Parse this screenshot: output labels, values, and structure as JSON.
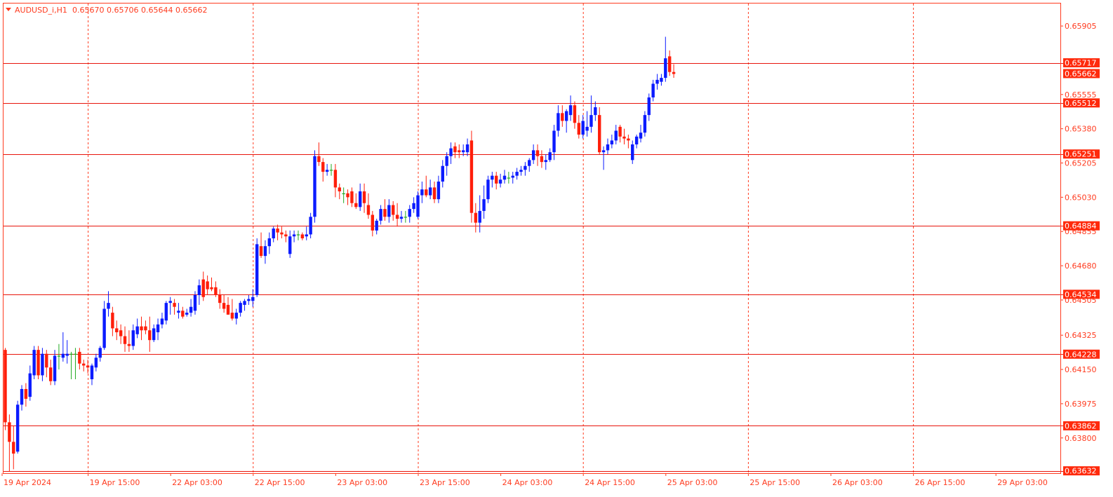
{
  "header": {
    "symbol_label": "AUDUSD_i,H1",
    "ohlc_text": "0.65670 0.65706 0.65644 0.65662"
  },
  "colors": {
    "frame": "#ff3b1f",
    "grid": "#ff3b1f",
    "level_line": "#e8150c",
    "tag_bg": "#ff2a0c",
    "tag_text": "#ffffff",
    "axis_text": "#ff3b1f",
    "bull": "#0b1bff",
    "bear": "#ff1e0a",
    "doji": "#22aa22"
  },
  "chart_data": {
    "type": "candlestick",
    "timeframe": "H1",
    "symbol": "AUDUSD_i",
    "ylim": [
      0.6362,
      0.6602
    ],
    "y_ticks": [
      "0.65905",
      "0.65555",
      "0.65380",
      "0.65205",
      "0.65030",
      "0.64855",
      "0.64680",
      "0.64505",
      "0.64325",
      "0.64150",
      "0.63975",
      "0.63800"
    ],
    "x_ticks": [
      "19 Apr 2024",
      "19 Apr 15:00",
      "22 Apr 03:00",
      "22 Apr 15:00",
      "23 Apr 03:00",
      "23 Apr 15:00",
      "24 Apr 03:00",
      "24 Apr 15:00",
      "25 Apr 03:00",
      "25 Apr 15:00",
      "26 Apr 03:00",
      "26 Apr 15:00",
      "29 Apr 03:00"
    ],
    "grid": "vertical-dashed",
    "current_price": "0.65662",
    "levels": [
      "0.65717",
      "0.65512",
      "0.65251",
      "0.64884",
      "0.64534",
      "0.64228",
      "0.63862",
      "0.63632"
    ],
    "candles": [
      [
        0.6425,
        0.6426,
        0.6384,
        0.6388
      ],
      [
        0.6388,
        0.6392,
        0.6363,
        0.6378
      ],
      [
        0.6378,
        0.6386,
        0.6364,
        0.6372
      ],
      [
        0.6373,
        0.6399,
        0.6372,
        0.6397
      ],
      [
        0.6397,
        0.6407,
        0.6394,
        0.6405
      ],
      [
        0.6405,
        0.6408,
        0.6396,
        0.64
      ],
      [
        0.6401,
        0.6417,
        0.6399,
        0.6413
      ],
      [
        0.6412,
        0.6427,
        0.641,
        0.6425
      ],
      [
        0.6425,
        0.6427,
        0.641,
        0.6412
      ],
      [
        0.6412,
        0.6426,
        0.6409,
        0.6423
      ],
      [
        0.6423,
        0.6425,
        0.6411,
        0.6416
      ],
      [
        0.6416,
        0.642,
        0.6407,
        0.6409
      ],
      [
        0.6409,
        0.6425,
        0.6407,
        0.6422
      ],
      [
        0.6422,
        0.6428,
        0.6415,
        0.6422
      ],
      [
        0.6421,
        0.6434,
        0.6419,
        0.6423
      ],
      [
        0.6422,
        0.643,
        0.6418,
        0.6423
      ],
      [
        0.6423,
        0.6424,
        0.641,
        0.6423
      ],
      [
        0.6423,
        0.6426,
        0.641,
        0.6423
      ],
      [
        0.6424,
        0.6426,
        0.6415,
        0.6418
      ],
      [
        0.6418,
        0.642,
        0.6414,
        0.6417
      ],
      [
        0.6417,
        0.642,
        0.6413,
        0.6416
      ],
      [
        0.641,
        0.6418,
        0.6407,
        0.6417
      ],
      [
        0.6416,
        0.6423,
        0.6414,
        0.6421
      ],
      [
        0.6421,
        0.6427,
        0.6419,
        0.6426
      ],
      [
        0.6426,
        0.645,
        0.6425,
        0.6446
      ],
      [
        0.6446,
        0.6455,
        0.6442,
        0.6449
      ],
      [
        0.6444,
        0.6447,
        0.6432,
        0.6436
      ],
      [
        0.6436,
        0.644,
        0.643,
        0.6434
      ],
      [
        0.6435,
        0.6438,
        0.6428,
        0.6432
      ],
      [
        0.6432,
        0.6437,
        0.6424,
        0.6428
      ],
      [
        0.6428,
        0.6435,
        0.6424,
        0.6427
      ],
      [
        0.6427,
        0.6438,
        0.6425,
        0.6435
      ],
      [
        0.6433,
        0.6441,
        0.6431,
        0.6437
      ],
      [
        0.6437,
        0.6442,
        0.643,
        0.6435
      ],
      [
        0.6437,
        0.644,
        0.6433,
        0.6435
      ],
      [
        0.6435,
        0.6442,
        0.6424,
        0.643
      ],
      [
        0.643,
        0.6438,
        0.6429,
        0.6436
      ],
      [
        0.6434,
        0.6441,
        0.643,
        0.6438
      ],
      [
        0.6438,
        0.6444,
        0.6436,
        0.6441
      ],
      [
        0.644,
        0.645,
        0.6438,
        0.6449
      ],
      [
        0.6449,
        0.6452,
        0.6443,
        0.645
      ],
      [
        0.6449,
        0.6451,
        0.6443,
        0.6447
      ],
      [
        0.6444,
        0.6449,
        0.6441,
        0.6445
      ],
      [
        0.6445,
        0.6447,
        0.6441,
        0.6442
      ],
      [
        0.6443,
        0.6446,
        0.6442,
        0.6444
      ],
      [
        0.6444,
        0.6451,
        0.6442,
        0.6447
      ],
      [
        0.6445,
        0.6455,
        0.6443,
        0.6453
      ],
      [
        0.6453,
        0.6461,
        0.6448,
        0.6458
      ],
      [
        0.6461,
        0.6465,
        0.645,
        0.6452
      ],
      [
        0.646,
        0.6463,
        0.6453,
        0.6456
      ],
      [
        0.6457,
        0.6462,
        0.6455,
        0.6456
      ],
      [
        0.6457,
        0.646,
        0.6452,
        0.6453
      ],
      [
        0.6453,
        0.6456,
        0.6446,
        0.6449
      ],
      [
        0.6449,
        0.6453,
        0.6444,
        0.6446
      ],
      [
        0.6448,
        0.6452,
        0.6443,
        0.6443
      ],
      [
        0.6444,
        0.6451,
        0.644,
        0.6441
      ],
      [
        0.6441,
        0.6446,
        0.6438,
        0.6444
      ],
      [
        0.6444,
        0.645,
        0.6442,
        0.6449
      ],
      [
        0.6448,
        0.6451,
        0.6445,
        0.645
      ],
      [
        0.645,
        0.6453,
        0.6448,
        0.6451
      ],
      [
        0.645,
        0.6456,
        0.6447,
        0.6452
      ],
      [
        0.6453,
        0.6482,
        0.6452,
        0.6479
      ],
      [
        0.6478,
        0.6485,
        0.6472,
        0.6473
      ],
      [
        0.6473,
        0.6481,
        0.6469,
        0.6478
      ],
      [
        0.6478,
        0.6485,
        0.6474,
        0.6482
      ],
      [
        0.6482,
        0.6488,
        0.648,
        0.6487
      ],
      [
        0.6487,
        0.6489,
        0.6481,
        0.6485
      ],
      [
        0.6485,
        0.6488,
        0.6482,
        0.6484
      ],
      [
        0.6484,
        0.6486,
        0.648,
        0.6483
      ],
      [
        0.6474,
        0.6486,
        0.6472,
        0.6483
      ],
      [
        0.6483,
        0.6486,
        0.648,
        0.6484
      ],
      [
        0.6484,
        0.6486,
        0.6481,
        0.6484
      ],
      [
        0.6484,
        0.6485,
        0.6481,
        0.6482
      ],
      [
        0.6483,
        0.6488,
        0.6481,
        0.6484
      ],
      [
        0.6484,
        0.6495,
        0.6482,
        0.6493
      ],
      [
        0.6493,
        0.6527,
        0.649,
        0.6524
      ],
      [
        0.6524,
        0.6531,
        0.6519,
        0.6521
      ],
      [
        0.6521,
        0.6523,
        0.6511,
        0.6516
      ],
      [
        0.6516,
        0.652,
        0.6514,
        0.6517
      ],
      [
        0.6517,
        0.652,
        0.6514,
        0.6517
      ],
      [
        0.6517,
        0.652,
        0.6503,
        0.6508
      ],
      [
        0.6508,
        0.651,
        0.6502,
        0.6506
      ],
      [
        0.6505,
        0.6508,
        0.65,
        0.6505
      ],
      [
        0.6505,
        0.6507,
        0.6499,
        0.6503
      ],
      [
        0.6506,
        0.6508,
        0.6498,
        0.65
      ],
      [
        0.65,
        0.6505,
        0.6497,
        0.6498
      ],
      [
        0.6498,
        0.651,
        0.6496,
        0.6506
      ],
      [
        0.6506,
        0.651,
        0.6495,
        0.65
      ],
      [
        0.6499,
        0.6505,
        0.6492,
        0.6494
      ],
      [
        0.6494,
        0.6496,
        0.6483,
        0.6486
      ],
      [
        0.6486,
        0.6492,
        0.6484,
        0.6491
      ],
      [
        0.6491,
        0.6499,
        0.6489,
        0.6497
      ],
      [
        0.6497,
        0.6502,
        0.6491,
        0.6493
      ],
      [
        0.6493,
        0.6502,
        0.649,
        0.6499
      ],
      [
        0.6499,
        0.6501,
        0.6491,
        0.6494
      ],
      [
        0.6494,
        0.65,
        0.6488,
        0.6492
      ],
      [
        0.6492,
        0.6496,
        0.649,
        0.6493
      ],
      [
        0.6493,
        0.6496,
        0.649,
        0.6493
      ],
      [
        0.6493,
        0.6499,
        0.649,
        0.6497
      ],
      [
        0.6497,
        0.6503,
        0.6495,
        0.65
      ],
      [
        0.6493,
        0.6506,
        0.6492,
        0.6504
      ],
      [
        0.6504,
        0.6511,
        0.65,
        0.6507
      ],
      [
        0.6507,
        0.6514,
        0.6503,
        0.6504
      ],
      [
        0.6504,
        0.6512,
        0.6502,
        0.6508
      ],
      [
        0.6508,
        0.6511,
        0.65,
        0.6502
      ],
      [
        0.6502,
        0.6514,
        0.65,
        0.6511
      ],
      [
        0.6511,
        0.6522,
        0.6508,
        0.6519
      ],
      [
        0.6519,
        0.6526,
        0.6514,
        0.6524
      ],
      [
        0.6524,
        0.6531,
        0.652,
        0.6528
      ],
      [
        0.6529,
        0.6531,
        0.6523,
        0.6526
      ],
      [
        0.6527,
        0.653,
        0.6523,
        0.6526
      ],
      [
        0.6526,
        0.653,
        0.6524,
        0.6527
      ],
      [
        0.6526,
        0.6533,
        0.6524,
        0.653
      ],
      [
        0.6532,
        0.6537,
        0.649,
        0.6495
      ],
      [
        0.6495,
        0.65,
        0.6485,
        0.649
      ],
      [
        0.649,
        0.6504,
        0.6485,
        0.6496
      ],
      [
        0.6496,
        0.6509,
        0.6492,
        0.6502
      ],
      [
        0.6502,
        0.6514,
        0.65,
        0.6512
      ],
      [
        0.6512,
        0.6516,
        0.6508,
        0.6514
      ],
      [
        0.6514,
        0.6516,
        0.6507,
        0.651
      ],
      [
        0.651,
        0.6515,
        0.6508,
        0.6512
      ],
      [
        0.6512,
        0.6517,
        0.651,
        0.6514
      ],
      [
        0.6513,
        0.6516,
        0.651,
        0.6513
      ],
      [
        0.6513,
        0.6516,
        0.651,
        0.6514
      ],
      [
        0.6514,
        0.6518,
        0.6512,
        0.6516
      ],
      [
        0.6516,
        0.6519,
        0.6514,
        0.6517
      ],
      [
        0.6517,
        0.6521,
        0.6514,
        0.6519
      ],
      [
        0.6519,
        0.6523,
        0.6516,
        0.6522
      ],
      [
        0.6522,
        0.653,
        0.652,
        0.6527
      ],
      [
        0.6527,
        0.653,
        0.6519,
        0.6524
      ],
      [
        0.6524,
        0.6527,
        0.6518,
        0.6521
      ],
      [
        0.6521,
        0.6525,
        0.6517,
        0.6522
      ],
      [
        0.6522,
        0.6528,
        0.6521,
        0.6526
      ],
      [
        0.6526,
        0.654,
        0.6522,
        0.6537
      ],
      [
        0.6537,
        0.655,
        0.6534,
        0.6546
      ],
      [
        0.6546,
        0.655,
        0.6539,
        0.6542
      ],
      [
        0.6542,
        0.6548,
        0.6536,
        0.6547
      ],
      [
        0.6545,
        0.6555,
        0.6542,
        0.655
      ],
      [
        0.655,
        0.6552,
        0.6538,
        0.6541
      ],
      [
        0.6541,
        0.6545,
        0.6533,
        0.6535
      ],
      [
        0.6535,
        0.6545,
        0.6533,
        0.6542
      ],
      [
        0.6537,
        0.6547,
        0.6534,
        0.6539
      ],
      [
        0.6539,
        0.6555,
        0.6536,
        0.6545
      ],
      [
        0.6545,
        0.6552,
        0.6542,
        0.6549
      ],
      [
        0.6545,
        0.6549,
        0.6525,
        0.6526
      ],
      [
        0.6526,
        0.6529,
        0.6517,
        0.6527
      ],
      [
        0.6527,
        0.6533,
        0.6525,
        0.653
      ],
      [
        0.653,
        0.6535,
        0.6528,
        0.6532
      ],
      [
        0.6532,
        0.654,
        0.653,
        0.6537
      ],
      [
        0.6539,
        0.654,
        0.6531,
        0.6534
      ],
      [
        0.6534,
        0.6538,
        0.653,
        0.6533
      ],
      [
        0.6533,
        0.6535,
        0.6528,
        0.6532
      ],
      [
        0.6522,
        0.6532,
        0.652,
        0.653
      ],
      [
        0.653,
        0.6535,
        0.6528,
        0.6534
      ],
      [
        0.6533,
        0.654,
        0.6531,
        0.6536
      ],
      [
        0.6536,
        0.6547,
        0.6534,
        0.6545
      ],
      [
        0.6545,
        0.6556,
        0.6542,
        0.6554
      ],
      [
        0.6554,
        0.6563,
        0.6552,
        0.6561
      ],
      [
        0.6561,
        0.6566,
        0.6558,
        0.6563
      ],
      [
        0.6562,
        0.6566,
        0.656,
        0.6564
      ],
      [
        0.6564,
        0.6585,
        0.6562,
        0.6574
      ],
      [
        0.6575,
        0.6578,
        0.6565,
        0.6567
      ],
      [
        0.6567,
        0.6571,
        0.6564,
        0.6566
      ]
    ]
  }
}
